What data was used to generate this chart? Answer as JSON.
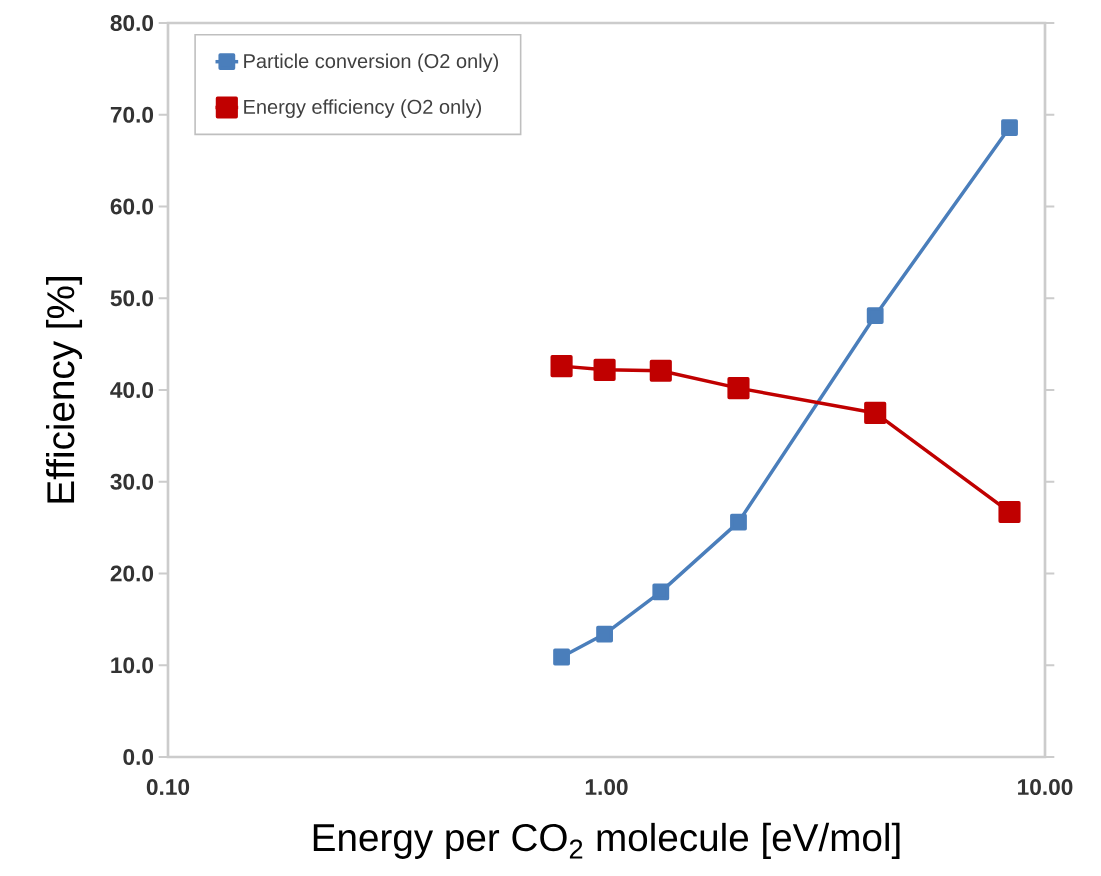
{
  "chart_data": {
    "type": "line",
    "xlabel": "Energy per CO$_{2}$ molecule [eV/mol]",
    "ylabel": "Efficiency [%]",
    "x": [
      0.79,
      0.99,
      1.33,
      2.0,
      4.1,
      8.3
    ],
    "series": [
      {
        "name": "Particle conversion (O2 only)",
        "color": "#4a7ebb",
        "values": [
          10.9,
          13.4,
          18.0,
          25.6,
          48.1,
          68.6
        ]
      },
      {
        "name": "Energy efficiency (O2 only)",
        "color": "#c00000",
        "values": [
          42.6,
          42.2,
          42.1,
          40.2,
          37.5,
          26.7
        ]
      }
    ],
    "log": "x",
    "xlim": [
      0.1,
      10
    ],
    "ylim": [
      0,
      80
    ],
    "xticks": [
      {
        "value": 0.1,
        "label": "0.10"
      },
      {
        "value": 1,
        "label": "1.00"
      },
      {
        "value": 10,
        "label": "10.00"
      }
    ],
    "yticks": [
      {
        "value": 0,
        "label": "0.0"
      },
      {
        "value": 10,
        "label": "10.0"
      },
      {
        "value": 20,
        "label": "20.0"
      },
      {
        "value": 30,
        "label": "30.0"
      },
      {
        "value": 40,
        "label": "40.0"
      },
      {
        "value": 50,
        "label": "50.0"
      },
      {
        "value": 60,
        "label": "60.0"
      },
      {
        "value": 70,
        "label": "70.0"
      },
      {
        "value": 80,
        "label": "80.0"
      }
    ],
    "grid": false,
    "legend": "top left",
    "marker": "square",
    "line_style": "solid"
  }
}
